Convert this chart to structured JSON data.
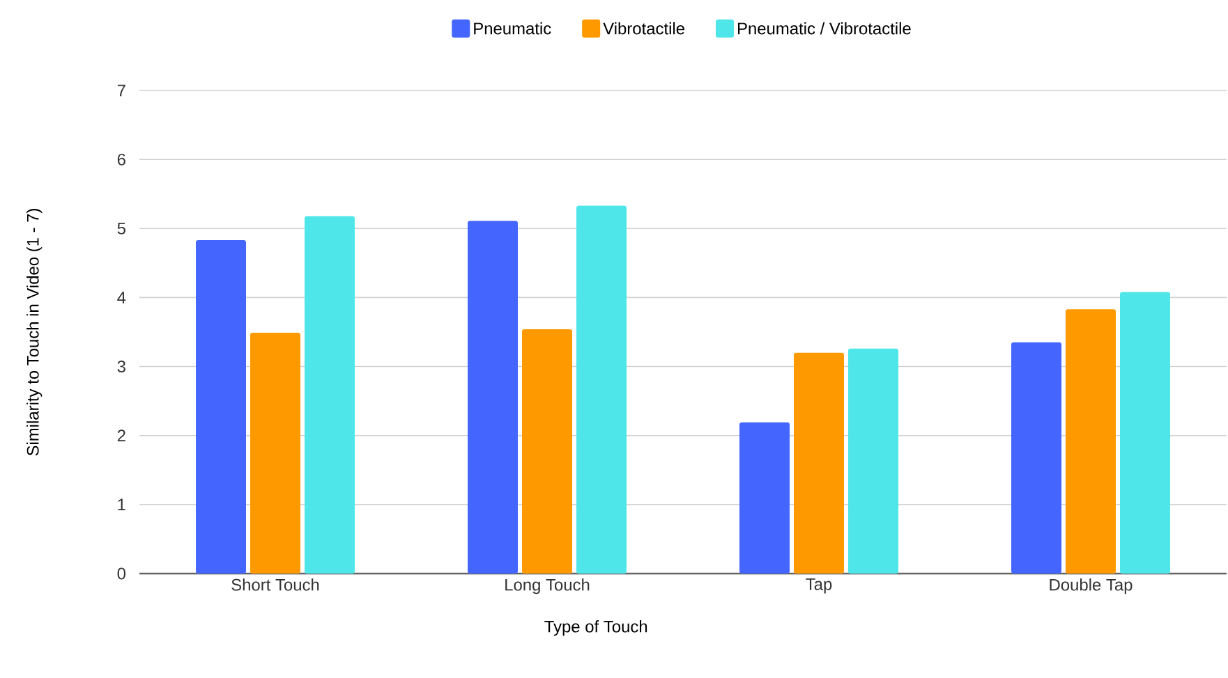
{
  "chart_data": {
    "type": "bar",
    "xlabel": "Type of Touch",
    "ylabel": "Similarity to Touch in Video (1 - 7)",
    "categories": [
      "Short Touch",
      "Long Touch",
      "Tap",
      "Double Tap"
    ],
    "series": [
      {
        "name": "Pneumatic",
        "color": "#4466ff",
        "values": [
          4.83,
          5.11,
          2.19,
          3.35
        ]
      },
      {
        "name": "Vibrotactile",
        "color": "#ff9900",
        "values": [
          3.49,
          3.54,
          3.2,
          3.83
        ]
      },
      {
        "name": "Pneumatic / Vibrotactile",
        "color": "#4ee6e9",
        "values": [
          5.18,
          5.33,
          3.26,
          4.08
        ]
      }
    ],
    "ylim": [
      0,
      7
    ],
    "yticks": [
      0,
      1,
      2,
      3,
      4,
      5,
      6,
      7
    ],
    "grid": "y",
    "legend": "top"
  }
}
